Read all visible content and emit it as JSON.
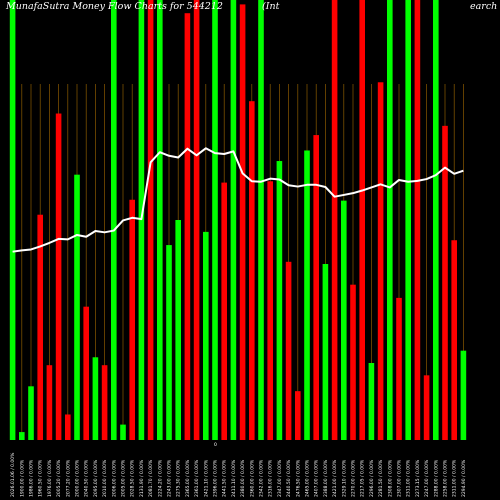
{
  "header": {
    "title": "MunafaSutra  Money Flow  Charts for 544212",
    "subtitle_left": "(Int",
    "subtitle_right": "earch"
  },
  "colors": {
    "background": "#000000",
    "up": "#00ff00",
    "down": "#ff0000",
    "line": "#ffffff",
    "grid": "#8b5a00"
  },
  "chart_data": {
    "type": "bar",
    "title": "MunafaSutra  Money Flow  Charts for 544212",
    "zero_label": "0",
    "ylim": [
      0,
      100
    ],
    "grid": "vertical",
    "categories": [
      "2026.01.06 / 0.00%",
      "1900.00 / 0.00%",
      "1986.00 / 0.00%",
      "1960.50 / 0.00%",
      "1976.00 / 0.00%",
      "2005.20 / 0.00%",
      "2077.20 / 0.00%",
      "2000.00 / 0.00%",
      "2040.50 / 0.00%",
      "2095.00 / 0.00%",
      "2010.00 / 0.00%",
      "2006.00 / 0.00%",
      "2005.00 / 0.00%",
      "2028.50 / 0.00%",
      "2131.90 / 0.00%",
      "2081.70 / 0.00%",
      "2224.20 / 0.00%",
      "2243.00 / 0.00%",
      "2275.30 / 0.00%",
      "2365.00 / 0.00%",
      "2361.00 / 0.00%",
      "2421.10 / 0.00%",
      "2396.00 / 0.00%",
      "2441.50 / 0.00%",
      "2411.10 / 0.00%",
      "2380.00 / 0.00%",
      "2360.00 / 0.00%",
      "2342.00 / 0.00%",
      "2316.00 / 0.00%",
      "2347.00 / 0.00%",
      "2440.50 / 0.00%",
      "2476.50 / 0.00%",
      "2465.00 / 0.00%",
      "2407.00 / 0.00%",
      "2388.00 / 0.00%",
      "2421.00 / 0.00%",
      "2329.10 / 0.00%",
      "2270.00 / 0.00%",
      "2217.05 / 0.00%",
      "2296.00 / 0.00%",
      "2281.50 / 0.00%",
      "2308.00 / 0.00%",
      "2307.00 / 0.00%",
      "2311.00 / 0.00%",
      "2273.15 / 0.00%",
      "2247.00 / 0.00%",
      "2288.00 / 0.00%",
      "2258.00 / 0.00%",
      "2311.00 / 0.00%",
      "2294.90 / 0.00%"
    ],
    "series": [
      {
        "kind": "bars",
        "colors": [
          "green",
          "green",
          "green",
          "red",
          "red",
          "red",
          "red",
          "green",
          "red",
          "green",
          "red",
          "green",
          "green",
          "red",
          "green",
          "red",
          "green",
          "green",
          "green",
          "red",
          "red",
          "green",
          "green",
          "red",
          "green",
          "red",
          "red",
          "green",
          "red",
          "green",
          "red",
          "red",
          "green",
          "red",
          "green",
          "red",
          "green",
          "red",
          "red",
          "green",
          "red",
          "green",
          "red",
          "green",
          "red",
          "red",
          "green",
          "red",
          "red",
          "green"
        ],
        "values": [
          100,
          1.8,
          12.2,
          51.2,
          17.0,
          74.2,
          5.8,
          60.3,
          30.3,
          18.8,
          17.0,
          100,
          3.5,
          54.6,
          100,
          100,
          100,
          44.3,
          50.0,
          97.0,
          100,
          47.3,
          100,
          58.5,
          100,
          99.0,
          77.0,
          100,
          58.8,
          63.4,
          40.5,
          11.1,
          65.8,
          69.3,
          40.0,
          100,
          54.4,
          35.3,
          100,
          17.5,
          81.3,
          100,
          32.3,
          100,
          100,
          14.7,
          100,
          71.4,
          45.4,
          20.3
        ]
      },
      {
        "kind": "line",
        "values": [
          42.8,
          43.1,
          43.3,
          44.0,
          44.8,
          45.7,
          45.6,
          46.6,
          46.2,
          47.5,
          47.2,
          47.6,
          49.9,
          50.5,
          50.2,
          63.1,
          65.4,
          64.6,
          64.2,
          66.2,
          64.7,
          66.3,
          65.2,
          65.0,
          65.6,
          60.6,
          58.8,
          58.7,
          59.4,
          59.2,
          57.9,
          57.6,
          58.0,
          58.0,
          57.5,
          55.3,
          55.7,
          56.1,
          56.7,
          57.4,
          58.1,
          57.4,
          59.1,
          58.7,
          58.9,
          59.3,
          60.2,
          61.9,
          60.5,
          61.2
        ]
      }
    ]
  }
}
